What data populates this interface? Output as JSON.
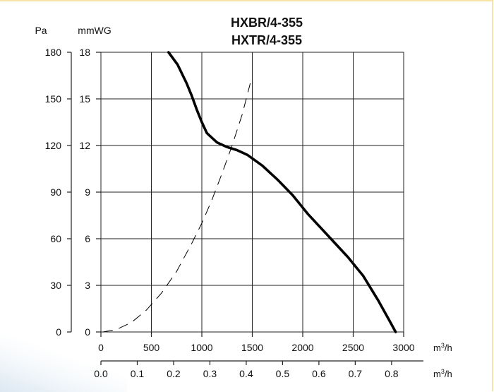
{
  "title_lines": [
    "HXBR/4-355",
    "HXTR/4-355"
  ],
  "chart_data": {
    "type": "line",
    "title": "HXBR/4-355 HXTR/4-355",
    "y_axis_left": {
      "label": "Pa",
      "min": 0,
      "max": 180,
      "ticks": [
        0,
        30,
        60,
        90,
        120,
        150,
        180
      ]
    },
    "y_axis_right": {
      "label": "mmWG",
      "min": 0,
      "max": 18,
      "ticks": [
        0,
        3,
        6,
        9,
        12,
        15,
        18
      ]
    },
    "x_axis_primary": {
      "unit_base": "m",
      "unit_sup": "3",
      "unit_tail": "/h",
      "min": 0,
      "max": 3000,
      "ticks": [
        0,
        500,
        1000,
        1500,
        2000,
        2500,
        3000
      ]
    },
    "x_axis_secondary": {
      "unit_base": "m",
      "unit_sup": "3",
      "unit_tail": "/h",
      "min": 0,
      "max": 0.8,
      "ticks": [
        "0.0",
        "0.1",
        "0.2",
        "0.3",
        "0.4",
        "0.5",
        "0.6",
        "0.7",
        "0.8"
      ],
      "tick_spacing_per_primary_unit": 0.000188
    },
    "grid": true,
    "series": [
      {
        "style": "solid",
        "x": [
          670,
          760,
          850,
          900,
          950,
          1000,
          1050,
          1150,
          1250,
          1350,
          1450,
          1600,
          1750,
          1900,
          2050,
          2250,
          2450,
          2600,
          2750,
          2870,
          2920
        ],
        "y": [
          180,
          172,
          160,
          152,
          143,
          135,
          128,
          122,
          119,
          117,
          114,
          107,
          98,
          88,
          76,
          62,
          48,
          36,
          20,
          6,
          0
        ]
      },
      {
        "style": "dashed",
        "x": [
          20,
          150,
          300,
          450,
          600,
          750,
          900,
          1000,
          1100,
          1200,
          1300,
          1400,
          1480
        ],
        "y": [
          0,
          1.5,
          6,
          14,
          25,
          39,
          57,
          70,
          85,
          102,
          120,
          140,
          160
        ]
      }
    ]
  }
}
